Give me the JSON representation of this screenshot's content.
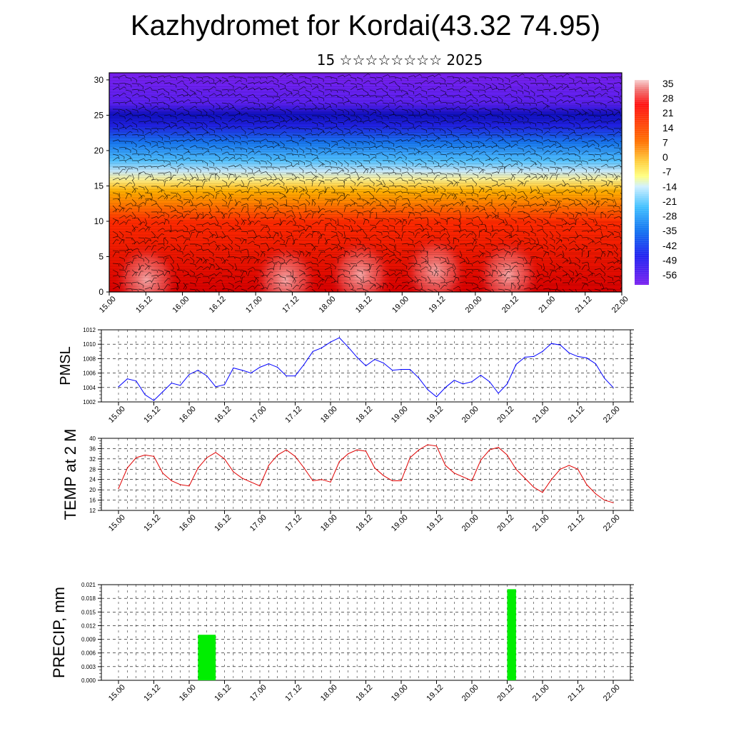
{
  "title": "Kazhydromet for Kordai(43.32 74.95)",
  "subtitle": "15 ☆☆☆☆☆☆☆☆ 2025",
  "chart_data": [
    {
      "type": "heatmap",
      "description_key": "vertical cross-section with wind barbs",
      "y_ticks": [
        "0",
        "5",
        "10",
        "15",
        "20",
        "25",
        "30"
      ],
      "ylim": [
        0,
        31
      ],
      "x_ticks": [
        "15.00",
        "15.12",
        "16.00",
        "16.12",
        "17.00",
        "17.12",
        "18.00",
        "18.12",
        "19.00",
        "19.12",
        "20.00",
        "20.12",
        "21.00",
        "21.12",
        "22.00"
      ],
      "colorbar_labels": [
        "35",
        "28",
        "21",
        "14",
        "7",
        "0",
        "-7",
        "-14",
        "-21",
        "-28",
        "-35",
        "-42",
        "-49",
        "-56"
      ],
      "colors": {
        "warm": "#e00000",
        "hot": "#f08080",
        "yellow": "#ffe060",
        "cyan": "#30b0ff",
        "blue": "#1010e0",
        "violet": "#8020f0"
      }
    },
    {
      "type": "line",
      "ylabel": "PMSL",
      "ylim": [
        1002,
        1012
      ],
      "y_ticks": [
        "1002",
        "1004",
        "1006",
        "1008",
        "1010",
        "1012"
      ],
      "x_ticks": [
        "15.00",
        "15.12",
        "16.00",
        "16.12",
        "17.00",
        "17.12",
        "18.00",
        "18.12",
        "19.00",
        "19.12",
        "20.00",
        "20.12",
        "21.00",
        "21.12",
        "22.00"
      ],
      "color": "#0000ff",
      "values": [
        1004.1,
        1005.2,
        1004.9,
        1003.0,
        1002.2,
        1003.4,
        1004.6,
        1004.3,
        1005.8,
        1006.4,
        1005.6,
        1004.1,
        1004.4,
        1006.7,
        1006.4,
        1006.0,
        1006.8,
        1007.3,
        1006.8,
        1005.6,
        1005.6,
        1007.2,
        1009.0,
        1009.5,
        1010.3,
        1010.9,
        1009.6,
        1008.2,
        1007.0,
        1007.9,
        1007.4,
        1006.4,
        1006.5,
        1006.5,
        1005.3,
        1003.7,
        1002.7,
        1004.0,
        1005.0,
        1004.5,
        1004.8,
        1005.7,
        1004.8,
        1003.2,
        1004.5,
        1007.2,
        1008.2,
        1008.3,
        1009.0,
        1010.1,
        1009.9,
        1008.8,
        1008.3,
        1008.1,
        1007.3,
        1005.3,
        1004.0
      ]
    },
    {
      "type": "line",
      "ylabel": "TEMP at 2 M",
      "ylim": [
        12,
        40
      ],
      "y_ticks": [
        "12",
        "16",
        "20",
        "24",
        "28",
        "32",
        "36",
        "40"
      ],
      "x_ticks": [
        "15.00",
        "15.12",
        "16.00",
        "16.12",
        "17.00",
        "17.12",
        "18.00",
        "18.12",
        "19.00",
        "19.12",
        "20.00",
        "20.12",
        "21.00",
        "21.12",
        "22.00"
      ],
      "color": "#e00000",
      "values": [
        20.5,
        28.5,
        32.5,
        33.5,
        33.0,
        26.5,
        23.5,
        22.0,
        21.5,
        28.5,
        32.5,
        34.5,
        32.0,
        27.0,
        24.5,
        23.0,
        21.5,
        29.5,
        33.5,
        35.5,
        33.0,
        28.5,
        23.5,
        24.0,
        23.0,
        31.0,
        34.0,
        35.5,
        35.0,
        28.5,
        25.5,
        23.5,
        23.5,
        32.5,
        35.5,
        37.5,
        37.0,
        29.5,
        26.5,
        25.0,
        23.5,
        31.5,
        35.5,
        36.5,
        33.5,
        28.0,
        24.5,
        21.0,
        19.0,
        24.0,
        28.0,
        29.5,
        28.0,
        22.0,
        18.5,
        16.0,
        15.0
      ]
    },
    {
      "type": "bar",
      "ylabel": "PRECIP, mm",
      "ylim": [
        0,
        0.021
      ],
      "y_ticks": [
        "0.000",
        "0.003",
        "0.006",
        "0.009",
        "0.012",
        "0.015",
        "0.018",
        "0.021"
      ],
      "x_ticks": [
        "15.00",
        "15.12",
        "16.00",
        "16.12",
        "17.00",
        "17.12",
        "18.00",
        "18.12",
        "19.00",
        "19.12",
        "20.00",
        "20.12",
        "21.00",
        "21.12",
        "22.00"
      ],
      "color": "#00ee00",
      "bars": [
        {
          "from_hour": 27,
          "to_hour": 33,
          "value": 0.01
        },
        {
          "from_hour": 132,
          "to_hour": 135,
          "value": 0.02
        }
      ]
    }
  ]
}
